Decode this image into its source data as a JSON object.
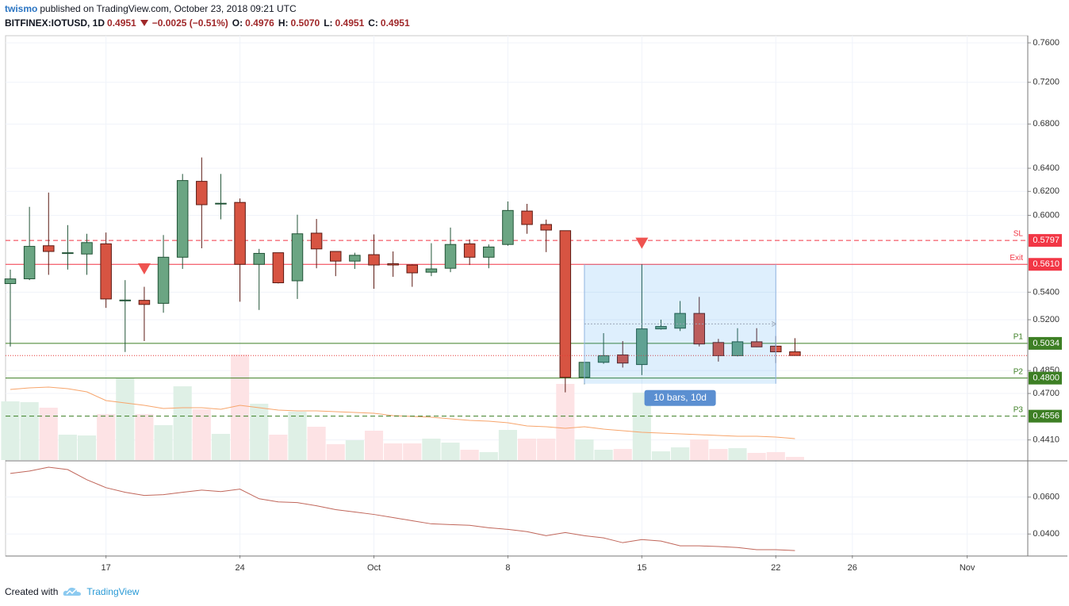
{
  "header": {
    "author": "twismo",
    "published": "published on TradingView.com, October 23, 2018 09:21 UTC",
    "symbol": "BITFINEX:IOTUSD, 1D",
    "last": "0.4951",
    "change": "−0.0025 (−0.51%)",
    "o_label": "O:",
    "o": "0.4976",
    "h_label": "H:",
    "h": "0.5070",
    "l_label": "L:",
    "l": "0.4951",
    "c_label": "C:",
    "c": "0.4951"
  },
  "footer": {
    "created": "Created with",
    "brand": "TradingView"
  },
  "chart_data": [
    {
      "type": "candlestick",
      "x": [
        "Sep 12",
        "Sep 13",
        "Sep 14",
        "Sep 15",
        "Sep 16",
        "Sep 17",
        "Sep 18",
        "Sep 19",
        "Sep 20",
        "Sep 21",
        "Sep 22",
        "Sep 23",
        "Sep 24",
        "Sep 25",
        "Sep 26",
        "Sep 27",
        "Sep 28",
        "Sep 29",
        "Sep 30",
        "Oct 1",
        "Oct 2",
        "Oct 3",
        "Oct 4",
        "Oct 5",
        "Oct 6",
        "Oct 7",
        "Oct 8",
        "Oct 9",
        "Oct 10",
        "Oct 11",
        "Oct 12",
        "Oct 13",
        "Oct 14",
        "Oct 15",
        "Oct 16",
        "Oct 17",
        "Oct 18",
        "Oct 19",
        "Oct 20",
        "Oct 21",
        "Oct 22",
        "Oct 23"
      ],
      "open": [
        0.5464,
        0.55,
        0.5755,
        0.5695,
        0.569,
        0.577,
        0.5338,
        0.534,
        0.5318,
        0.5665,
        0.6286,
        0.6095,
        0.6107,
        0.561,
        0.57,
        0.5485,
        0.5855,
        0.571,
        0.5635,
        0.5685,
        0.5615,
        0.5605,
        0.555,
        0.558,
        0.577,
        0.5665,
        0.5765,
        0.6035,
        0.5925,
        0.5875,
        0.4805,
        0.4905,
        0.4955,
        0.489,
        0.5135,
        0.514,
        0.5245,
        0.504,
        0.495,
        0.5045,
        0.5015,
        0.4976
      ],
      "high": [
        0.557,
        0.607,
        0.619,
        0.592,
        0.585,
        0.586,
        0.549,
        0.544,
        0.584,
        0.635,
        0.6495,
        0.635,
        0.614,
        0.573,
        0.57,
        0.6005,
        0.597,
        0.571,
        0.57,
        0.5845,
        0.571,
        0.561,
        0.5775,
        0.59,
        0.5805,
        0.5765,
        0.6115,
        0.6095,
        0.5965,
        0.5875,
        0.4905,
        0.5105,
        0.505,
        0.561,
        0.52,
        0.5335,
        0.5365,
        0.5065,
        0.514,
        0.514,
        0.5085,
        0.507
      ],
      "low": [
        0.5012,
        0.549,
        0.553,
        0.557,
        0.553,
        0.5285,
        0.4975,
        0.505,
        0.525,
        0.5575,
        0.5735,
        0.5967,
        0.533,
        0.527,
        0.5465,
        0.535,
        0.558,
        0.552,
        0.5575,
        0.5425,
        0.5515,
        0.544,
        0.552,
        0.555,
        0.5605,
        0.558,
        0.5755,
        0.585,
        0.5705,
        0.4707,
        0.476,
        0.4895,
        0.487,
        0.482,
        0.513,
        0.512,
        0.5013,
        0.491,
        0.4945,
        0.5008,
        0.49,
        0.4951
      ],
      "close": [
        0.5499,
        0.575,
        0.571,
        0.57,
        0.578,
        0.535,
        0.5342,
        0.531,
        0.5665,
        0.6293,
        0.6088,
        0.61,
        0.561,
        0.5695,
        0.547,
        0.585,
        0.573,
        0.5635,
        0.568,
        0.5605,
        0.5605,
        0.5545,
        0.5575,
        0.5765,
        0.5665,
        0.5745,
        0.604,
        0.5925,
        0.588,
        0.4805,
        0.4905,
        0.495,
        0.49,
        0.5135,
        0.5152,
        0.5245,
        0.503,
        0.495,
        0.5045,
        0.501,
        0.4976,
        0.4951
      ],
      "up_color": "#6ba583",
      "down_color": "#d75442",
      "up_border": "#225437",
      "down_border": "#5b1a13",
      "volume": [
        74,
        73,
        66,
        32,
        31,
        58,
        103,
        58,
        44,
        93,
        64,
        33,
        133,
        71,
        32,
        61,
        42,
        20,
        25,
        37,
        21,
        21,
        27,
        22,
        13,
        10,
        38,
        27,
        27,
        96,
        26,
        13,
        14,
        85,
        11,
        16,
        26,
        14,
        15,
        9,
        10,
        4
      ],
      "volume_up_color": "#dff0e6",
      "volume_down_color": "#fde3e5",
      "volume_ma": [
        89,
        91,
        92,
        90,
        86,
        75,
        72,
        69,
        65,
        66,
        66,
        64,
        69,
        66,
        63,
        62,
        62,
        61,
        60,
        59,
        56,
        55,
        54,
        52,
        50,
        49,
        47,
        43,
        42,
        40,
        42,
        39,
        37,
        35,
        34,
        33,
        32,
        31,
        30,
        30,
        29,
        27
      ],
      "volume_ma_color": "#f7a56c",
      "log_scale": true,
      "grid": true,
      "grid_color": "#f0f3fa",
      "ylim": [
        0.429,
        0.7675
      ],
      "yticks": [
        {
          "value": 0.76,
          "label": "0.7600"
        },
        {
          "value": 0.72,
          "label": "0.7200"
        },
        {
          "value": 0.68,
          "label": "0.6800"
        },
        {
          "value": 0.64,
          "label": "0.6400"
        },
        {
          "value": 0.62,
          "label": "0.6200"
        },
        {
          "value": 0.6,
          "label": "0.6000"
        },
        {
          "value": 0.54,
          "label": "0.5400"
        },
        {
          "value": 0.52,
          "label": "0.5200"
        },
        {
          "value": 0.485,
          "label": "0.4850"
        },
        {
          "value": 0.47,
          "label": "0.4700"
        },
        {
          "value": 0.441,
          "label": "0.4410"
        }
      ],
      "xlim": [
        "Sep 12",
        "Nov 4"
      ],
      "xticks": [
        {
          "value": "Sep 17",
          "label": "17"
        },
        {
          "value": "Sep 24",
          "label": "24"
        },
        {
          "value": "Oct 1",
          "label": "Oct"
        },
        {
          "value": "Oct 8",
          "label": "8"
        },
        {
          "value": "Oct 15",
          "label": "15"
        },
        {
          "value": "Oct 22",
          "label": "22"
        },
        {
          "value": "Oct 26",
          "label": "26"
        },
        {
          "value": "Nov 1",
          "label": "Nov"
        }
      ],
      "levels": {
        "names": [
          "SL",
          "Exit",
          "P1",
          "P2",
          "P3"
        ],
        "values": [
          0.5797,
          0.561,
          0.5034,
          0.48,
          0.4556
        ],
        "value_labels": [
          "0.5797",
          "0.5610",
          "0.5034",
          "0.4800",
          "0.4556"
        ],
        "colors": [
          "#f23645",
          "#f23645",
          "#3d7f24",
          "#3d7f24",
          "#3d7f24"
        ],
        "styles": [
          "dashed",
          "solid",
          "solid",
          "solid",
          "dashed"
        ]
      },
      "last_price_color": "#e53935",
      "range": {
        "from": "Oct 12",
        "to": "Oct 22",
        "top": 0.561,
        "bottom": 0.4763,
        "mid": 0.517,
        "label": "10 bars, 10d",
        "color": "#2196f3"
      },
      "markers": [
        {
          "x": "Sep 19",
          "y": 0.5575
        },
        {
          "x": "Oct 15",
          "y": 0.5775
        }
      ],
      "marker_color": "#ef5350"
    },
    {
      "type": "line",
      "values": [
        0.0728,
        0.0741,
        0.0762,
        0.0749,
        0.0694,
        0.0651,
        0.0626,
        0.0609,
        0.0613,
        0.0626,
        0.0638,
        0.063,
        0.0643,
        0.0591,
        0.0574,
        0.057,
        0.0553,
        0.0532,
        0.0519,
        0.0506,
        0.0489,
        0.0472,
        0.0455,
        0.0451,
        0.0447,
        0.0434,
        0.0425,
        0.0413,
        0.0391,
        0.0408,
        0.0391,
        0.0379,
        0.0353,
        0.037,
        0.0362,
        0.0336,
        0.0336,
        0.0332,
        0.0327,
        0.0315,
        0.0315,
        0.031
      ],
      "color": "#c0665a",
      "ylim": [
        0.0285,
        0.0792
      ],
      "yticks": [
        {
          "value": 0.06,
          "label": "0.0600"
        },
        {
          "value": 0.04,
          "label": "0.0400"
        }
      ]
    }
  ]
}
